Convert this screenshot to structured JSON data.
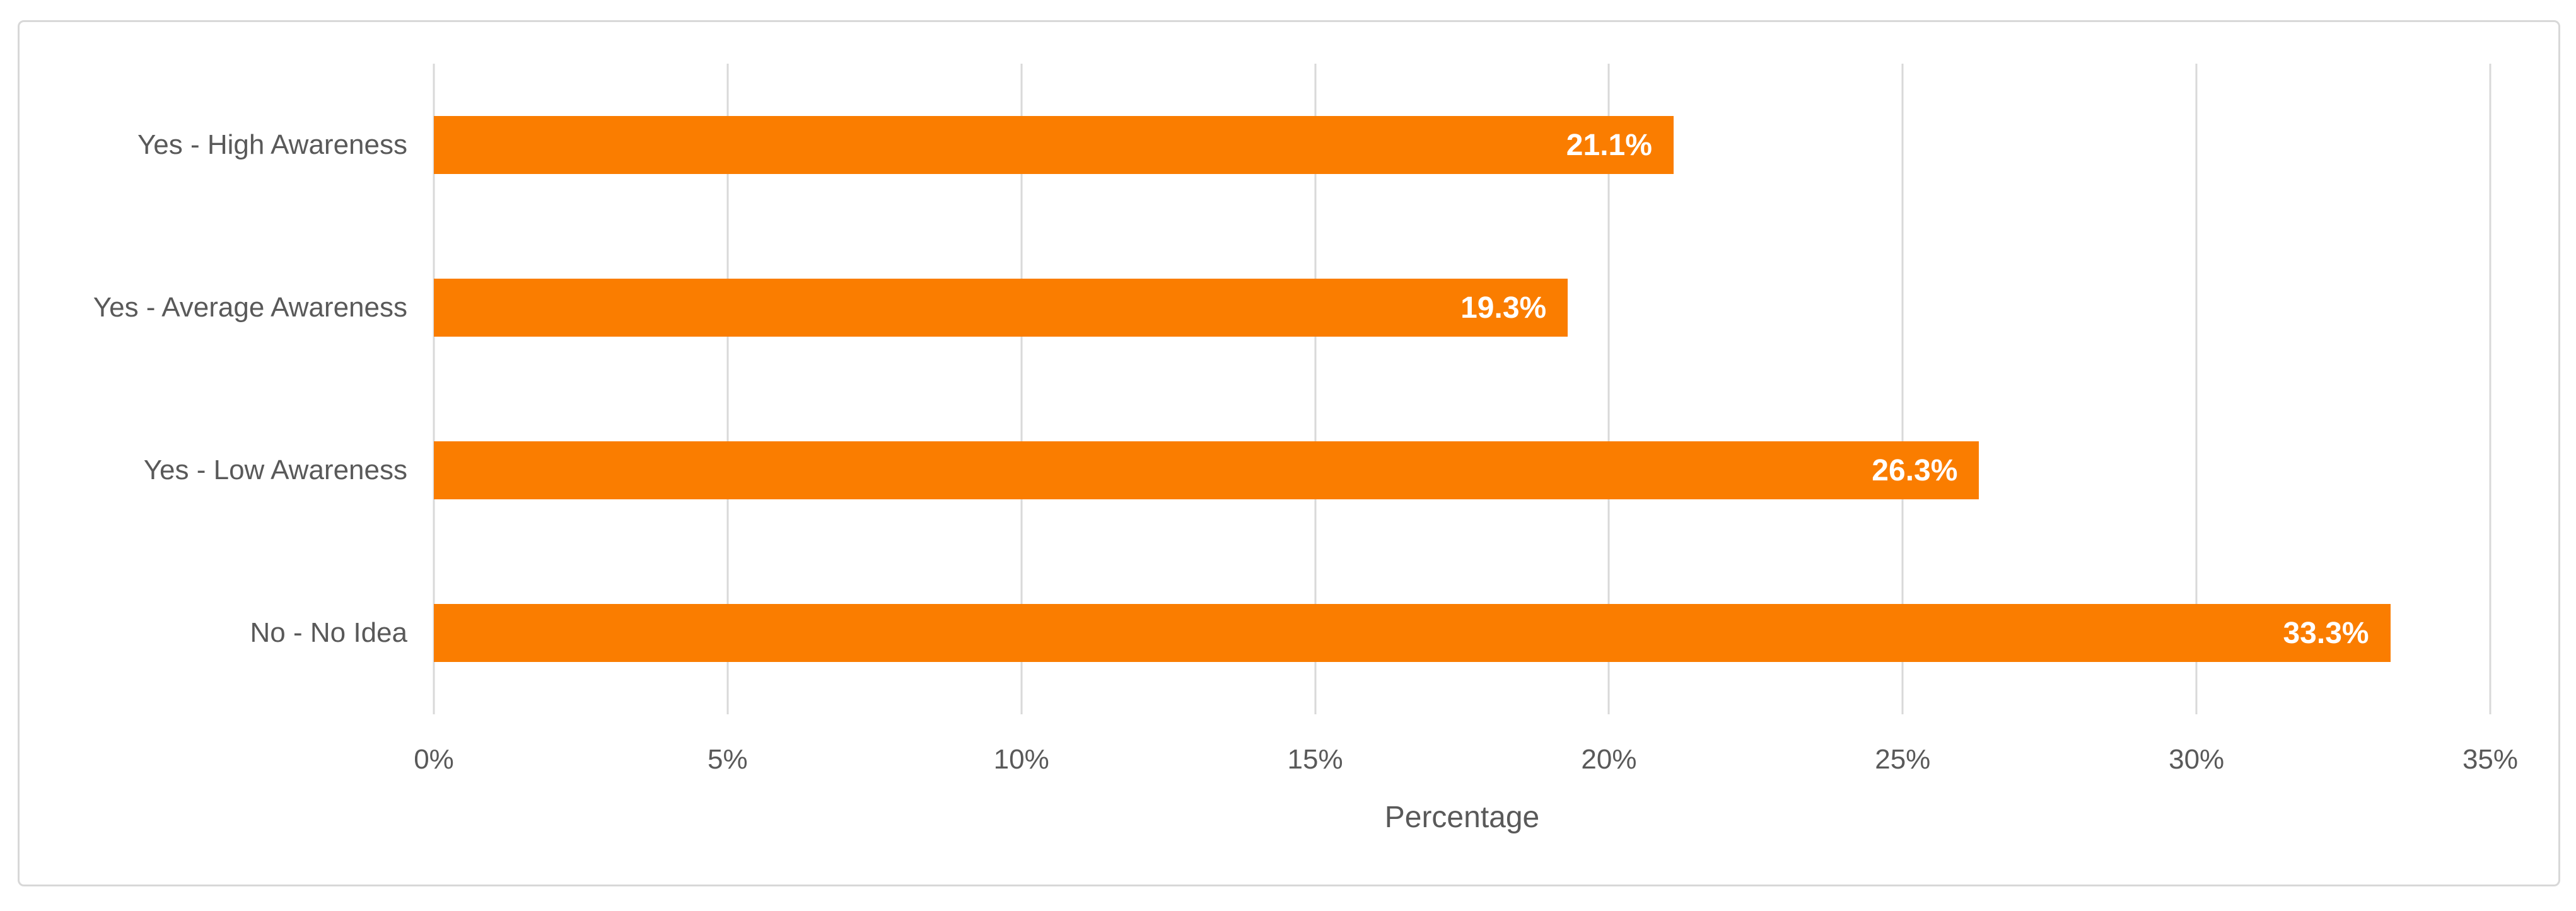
{
  "chart_data": {
    "type": "bar",
    "orientation": "horizontal",
    "title": "",
    "categories": [
      "Yes - High Awareness",
      "Yes - Average Awareness",
      "Yes - Low Awareness",
      "No - No Idea"
    ],
    "values": [
      21.1,
      19.3,
      26.3,
      33.3
    ],
    "value_labels": [
      "21.1%",
      "19.3%",
      "26.3%",
      "33.3%"
    ],
    "xlabel": "Percentage",
    "ylabel": "",
    "xlim": [
      0,
      35
    ],
    "xticks": [
      0,
      5,
      10,
      15,
      20,
      25,
      30,
      35
    ],
    "xtick_labels": [
      "0%",
      "5%",
      "10%",
      "15%",
      "20%",
      "25%",
      "30%",
      "35%"
    ],
    "grid": "vertical-only",
    "legend": "none",
    "bar_gap_ratio": 0.357,
    "colors": {
      "bar": "#FA7D00",
      "data_label": "#FFFFFF",
      "axis_text": "#595959",
      "gridline": "#D9D9D9",
      "frame_border": "#D8D8D8",
      "background": "#FFFFFF"
    }
  }
}
